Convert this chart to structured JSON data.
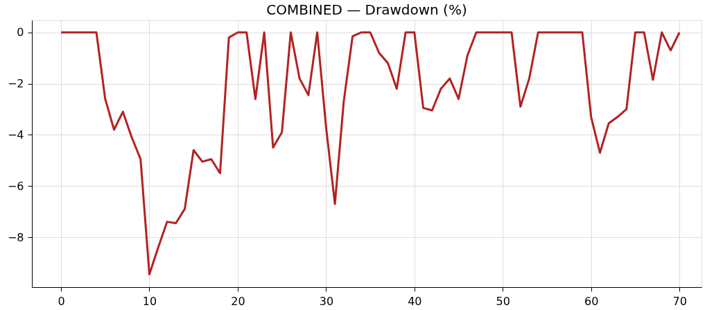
{
  "chart_data": {
    "type": "line",
    "title": "COMBINED — Drawdown (%)",
    "x": [
      0,
      1,
      2,
      3,
      4,
      5,
      6,
      7,
      8,
      9,
      10,
      11,
      12,
      13,
      14,
      15,
      16,
      17,
      18,
      19,
      20,
      21,
      22,
      23,
      24,
      25,
      26,
      27,
      28,
      29,
      30,
      31,
      32,
      33,
      34,
      35,
      36,
      37,
      38,
      39,
      40,
      41,
      42,
      43,
      44,
      45,
      46,
      47,
      48,
      49,
      50,
      51,
      52,
      53,
      54,
      55,
      56,
      57,
      58,
      59,
      60,
      61,
      62,
      63,
      64,
      65,
      66,
      67,
      68,
      69,
      70
    ],
    "series": [
      {
        "color": "#b22222",
        "values": [
          0,
          0,
          0,
          0,
          0,
          -2.6,
          -3.8,
          -3.1,
          -4.1,
          -4.95,
          -9.45,
          -8.4,
          -7.4,
          -7.45,
          -6.9,
          -4.6,
          -5.05,
          -4.95,
          -5.5,
          -0.2,
          0,
          0,
          -2.6,
          0,
          -4.5,
          -3.9,
          0,
          -1.8,
          -2.45,
          0,
          -3.7,
          -6.7,
          -2.7,
          -0.15,
          0,
          0,
          -0.8,
          -1.2,
          -2.2,
          0,
          0,
          -2.95,
          -3.05,
          -2.2,
          -1.8,
          -2.6,
          -0.9,
          0,
          0,
          0,
          0,
          0,
          -2.9,
          -1.8,
          0,
          0,
          0,
          0,
          0,
          0,
          -3.3,
          -4.7,
          -3.55,
          -3.3,
          -3.0,
          0,
          0,
          -1.85,
          0,
          -0.7,
          0
        ]
      }
    ],
    "xlim": [
      -3.3,
      72.5
    ],
    "ylim": [
      -9.95,
      0.48
    ],
    "xticks": [
      0,
      10,
      20,
      30,
      40,
      50,
      60,
      70
    ],
    "yticks": [
      -8,
      -6,
      -4,
      -2,
      0
    ],
    "grid": true,
    "legend": false,
    "marker": "none",
    "line_style": "solid"
  }
}
